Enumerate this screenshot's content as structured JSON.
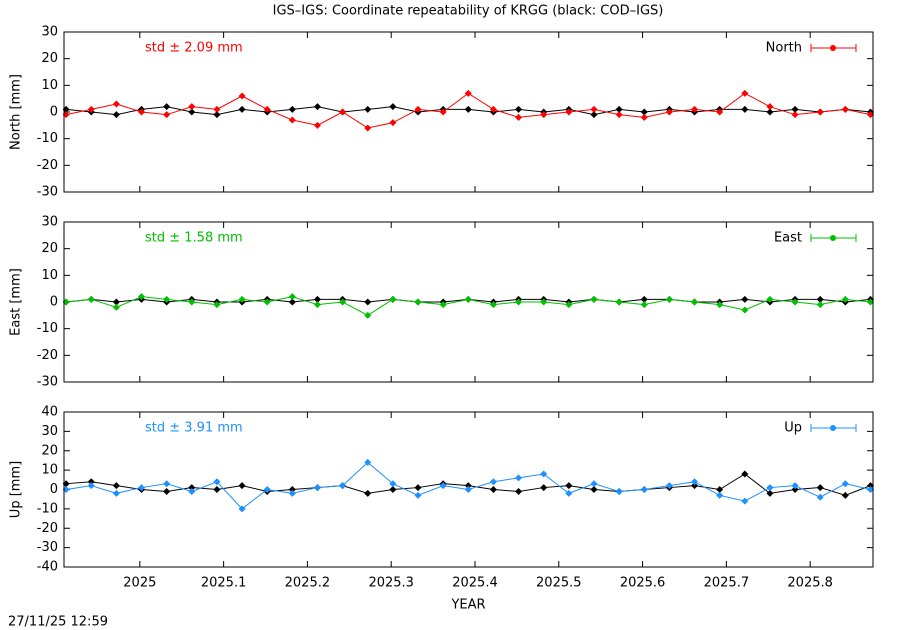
{
  "title": "IGS–IGS: Coordinate repeatability of KRGG (black: COD–IGS)",
  "timestamp": "27/11/25 12:59",
  "chart_data": [
    {
      "type": "line",
      "ylabel": "North [mm]",
      "annotation": "std ± 2.09 mm",
      "x": [
        2024.912,
        2024.942,
        2024.972,
        2025.002,
        2025.032,
        2025.062,
        2025.092,
        2025.122,
        2025.152,
        2025.182,
        2025.212,
        2025.242,
        2025.272,
        2025.302,
        2025.332,
        2025.362,
        2025.392,
        2025.422,
        2025.452,
        2025.482,
        2025.512,
        2025.542,
        2025.572,
        2025.602,
        2025.632,
        2025.662,
        2025.692,
        2025.722,
        2025.752,
        2025.782,
        2025.812,
        2025.842,
        2025.872
      ],
      "series": [
        {
          "color": "#000000",
          "values": [
            1,
            0,
            -1,
            1,
            2,
            0,
            -1,
            1,
            0,
            1,
            2,
            0,
            1,
            2,
            0,
            1,
            1,
            0,
            1,
            0,
            1,
            -1,
            1,
            0,
            1,
            0,
            1,
            1,
            0,
            1,
            0,
            1,
            0
          ]
        },
        {
          "name": "North",
          "color": "#ff0000",
          "values": [
            -1,
            1,
            3,
            0,
            -1,
            2,
            1,
            6,
            1,
            -3,
            -5,
            0,
            -6,
            -4,
            1,
            0,
            7,
            1,
            -2,
            -1,
            0,
            1,
            -1,
            -2,
            0,
            1,
            0,
            7,
            2,
            -1,
            0,
            1,
            -1
          ]
        }
      ],
      "xlim": [
        2024.9095,
        2025.875
      ],
      "xticks": [
        2025,
        2025.1,
        2025.2,
        2025.3,
        2025.4,
        2025.5,
        2025.6,
        2025.7,
        2025.8
      ],
      "ylim": [
        -30,
        30
      ],
      "yticks": [
        -30,
        -20,
        -10,
        0,
        10,
        20,
        30
      ]
    },
    {
      "type": "line",
      "ylabel": "East [mm]",
      "annotation": "std ± 1.58 mm",
      "x": [
        2024.912,
        2024.942,
        2024.972,
        2025.002,
        2025.032,
        2025.062,
        2025.092,
        2025.122,
        2025.152,
        2025.182,
        2025.212,
        2025.242,
        2025.272,
        2025.302,
        2025.332,
        2025.362,
        2025.392,
        2025.422,
        2025.452,
        2025.482,
        2025.512,
        2025.542,
        2025.572,
        2025.602,
        2025.632,
        2025.662,
        2025.692,
        2025.722,
        2025.752,
        2025.782,
        2025.812,
        2025.842,
        2025.872
      ],
      "series": [
        {
          "color": "#000000",
          "values": [
            0,
            1,
            0,
            1,
            0,
            1,
            0,
            0,
            1,
            0,
            1,
            1,
            0,
            1,
            0,
            0,
            1,
            0,
            1,
            1,
            0,
            1,
            0,
            1,
            1,
            0,
            0,
            1,
            0,
            1,
            1,
            0,
            1
          ]
        },
        {
          "name": "East",
          "color": "#00c000",
          "values": [
            0,
            1,
            -2,
            2,
            1,
            0,
            -1,
            1,
            0,
            2,
            -1,
            0,
            -5,
            1,
            0,
            -1,
            1,
            -1,
            0,
            0,
            -1,
            1,
            0,
            -1,
            1,
            0,
            -1,
            -3,
            1,
            0,
            -1,
            1,
            0
          ]
        }
      ],
      "xlim": [
        2024.9095,
        2025.875
      ],
      "xticks": [
        2025,
        2025.1,
        2025.2,
        2025.3,
        2025.4,
        2025.5,
        2025.6,
        2025.7,
        2025.8
      ],
      "ylim": [
        -30,
        30
      ],
      "yticks": [
        -30,
        -20,
        -10,
        0,
        10,
        20,
        30
      ]
    },
    {
      "type": "line",
      "ylabel": "Up [mm]",
      "annotation": "std ± 3.91 mm",
      "xlabel": "YEAR",
      "x": [
        2024.912,
        2024.942,
        2024.972,
        2025.002,
        2025.032,
        2025.062,
        2025.092,
        2025.122,
        2025.152,
        2025.182,
        2025.212,
        2025.242,
        2025.272,
        2025.302,
        2025.332,
        2025.362,
        2025.392,
        2025.422,
        2025.452,
        2025.482,
        2025.512,
        2025.542,
        2025.572,
        2025.602,
        2025.632,
        2025.662,
        2025.692,
        2025.722,
        2025.752,
        2025.782,
        2025.812,
        2025.842,
        2025.872
      ],
      "series": [
        {
          "color": "#000000",
          "values": [
            3,
            4,
            2,
            0,
            -1,
            1,
            0,
            2,
            -1,
            0,
            1,
            2,
            -2,
            0,
            1,
            3,
            2,
            0,
            -1,
            1,
            2,
            0,
            -1,
            0,
            1,
            2,
            0,
            8,
            -2,
            0,
            1,
            -3,
            2
          ]
        },
        {
          "name": "Up",
          "color": "#1e90ff",
          "values": [
            0,
            2,
            -2,
            1,
            3,
            -1,
            4,
            -10,
            0,
            -2,
            1,
            2,
            14,
            3,
            -3,
            2,
            0,
            4,
            6,
            8,
            -2,
            3,
            -1,
            0,
            2,
            4,
            -3,
            -6,
            1,
            2,
            -4,
            3,
            0
          ]
        }
      ],
      "xlim": [
        2024.9095,
        2025.875
      ],
      "xticks": [
        2025,
        2025.1,
        2025.2,
        2025.3,
        2025.4,
        2025.5,
        2025.6,
        2025.7,
        2025.8
      ],
      "ylim": [
        -40,
        40
      ],
      "yticks": [
        -40,
        -30,
        -20,
        -10,
        0,
        10,
        20,
        30,
        40
      ]
    }
  ]
}
